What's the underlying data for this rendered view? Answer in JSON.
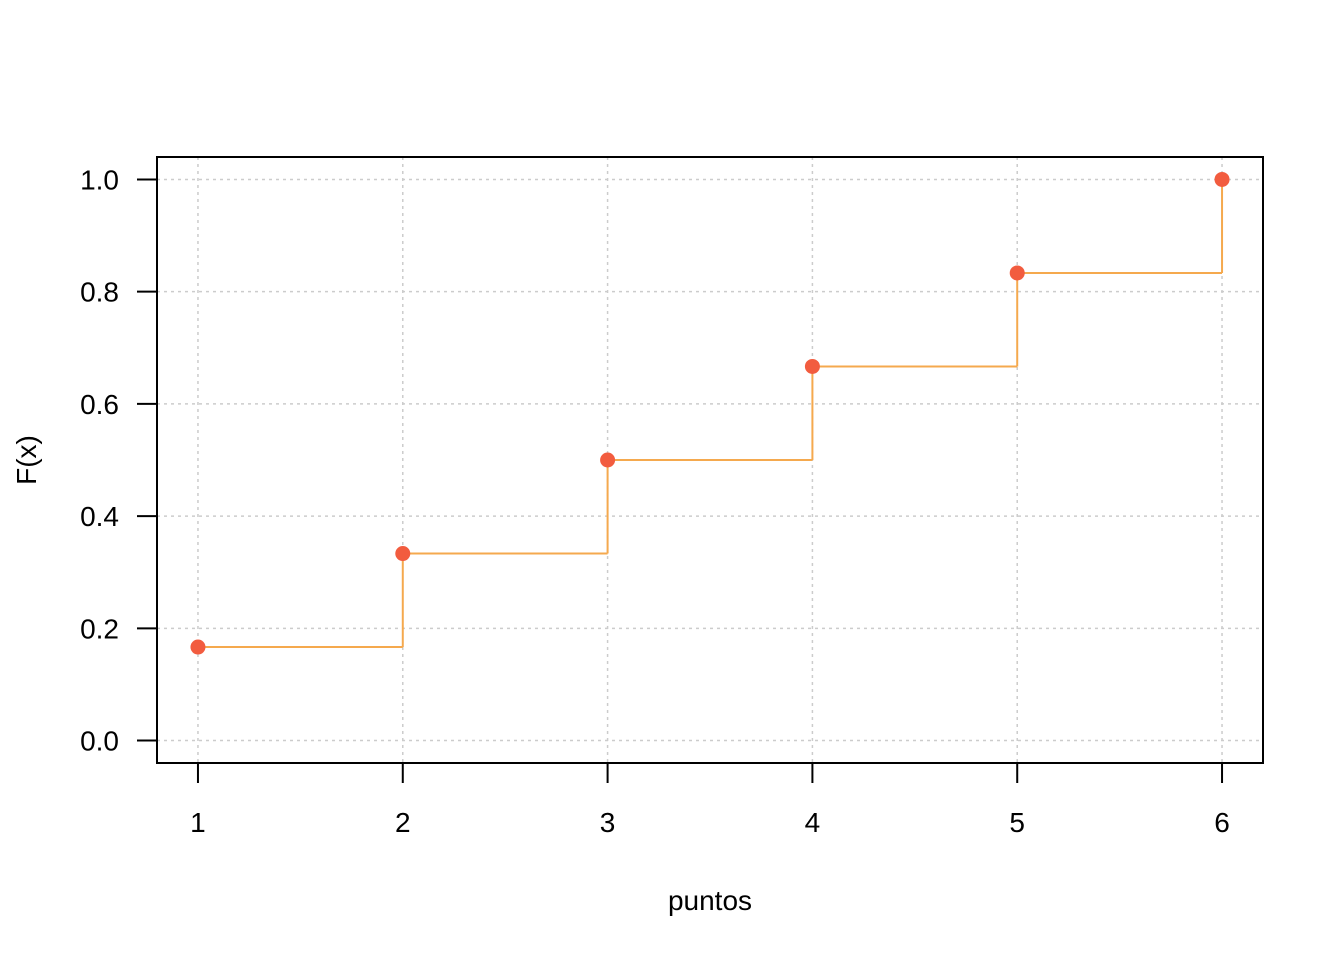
{
  "chart_data": {
    "type": "line",
    "step": true,
    "title": "",
    "xlabel": "puntos",
    "ylabel": "F(x)",
    "x": [
      1,
      2,
      3,
      4,
      5,
      6
    ],
    "y": [
      0.1667,
      0.3333,
      0.5,
      0.6667,
      0.8333,
      1.0
    ],
    "xlim": [
      0.8,
      6.2
    ],
    "ylim": [
      -0.04,
      1.04
    ],
    "x_ticks": [
      1,
      2,
      3,
      4,
      5,
      6
    ],
    "x_tick_labels": [
      "1",
      "2",
      "3",
      "4",
      "5",
      "6"
    ],
    "y_ticks": [
      0.0,
      0.2,
      0.4,
      0.6,
      0.8,
      1.0
    ],
    "y_tick_labels": [
      "0.0",
      "0.2",
      "0.4",
      "0.6",
      "0.8",
      "1.0"
    ],
    "grid": true,
    "colors": {
      "line": "#f5a94e",
      "points": "#f25c3f",
      "grid": "#cccccc",
      "axis": "#000000"
    }
  }
}
